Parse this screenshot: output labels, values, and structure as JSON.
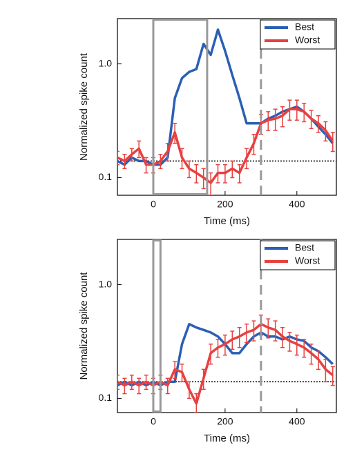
{
  "chart_data": [
    {
      "type": "line",
      "ylabel": "Normalized spike count",
      "xlabel": "Time (ms)",
      "x": [
        -100,
        -80,
        -60,
        -40,
        -20,
        0,
        20,
        40,
        60,
        80,
        100,
        120,
        140,
        160,
        180,
        200,
        220,
        240,
        260,
        280,
        300,
        320,
        340,
        360,
        380,
        400,
        420,
        440,
        460,
        480,
        500
      ],
      "series": [
        {
          "name": "Best",
          "color": "#2b5fb4",
          "values": [
            0.14,
            0.13,
            0.15,
            0.14,
            0.14,
            0.13,
            0.13,
            0.15,
            0.5,
            0.75,
            0.85,
            0.9,
            1.5,
            1.2,
            2.0,
            1.3,
            0.8,
            0.5,
            0.3,
            0.3,
            0.3,
            0.33,
            0.35,
            0.38,
            0.4,
            0.42,
            0.38,
            0.33,
            0.28,
            0.24,
            0.2
          ]
        },
        {
          "name": "Worst",
          "color": "#e8403f",
          "values": [
            0.15,
            0.14,
            0.16,
            0.18,
            0.13,
            0.13,
            0.14,
            0.17,
            0.25,
            0.15,
            0.12,
            0.11,
            0.1,
            0.09,
            0.11,
            0.11,
            0.12,
            0.11,
            0.15,
            0.2,
            0.3,
            0.32,
            0.33,
            0.35,
            0.4,
            0.4,
            0.38,
            0.33,
            0.3,
            0.26,
            0.21
          ],
          "errors": [
            0.02,
            0.02,
            0.02,
            0.03,
            0.02,
            0.02,
            0.02,
            0.03,
            0.05,
            0.03,
            0.02,
            0.02,
            0.02,
            0.02,
            0.02,
            0.02,
            0.02,
            0.02,
            0.03,
            0.04,
            0.06,
            0.06,
            0.07,
            0.07,
            0.08,
            0.08,
            0.07,
            0.06,
            0.05,
            0.05,
            0.04
          ]
        }
      ],
      "xlim": [
        -100,
        510
      ],
      "xticks": [
        0,
        200,
        400
      ],
      "ylim": [
        0.07,
        2.5
      ],
      "yticks": [
        0.1,
        {
          "value": 1,
          "label": "1.0"
        }
      ],
      "log_y": true,
      "hline": 0.14,
      "vline": 300,
      "window": [
        0,
        150
      ],
      "legend": "upper right"
    },
    {
      "type": "line",
      "ylabel": "Normalized spike count",
      "xlabel": "Time (ms)",
      "x": [
        -100,
        -80,
        -60,
        -40,
        -20,
        0,
        20,
        40,
        60,
        80,
        100,
        120,
        140,
        160,
        180,
        200,
        220,
        240,
        260,
        280,
        300,
        320,
        340,
        360,
        380,
        400,
        420,
        440,
        460,
        480,
        500
      ],
      "series": [
        {
          "name": "Best",
          "color": "#2b5fb4",
          "values": [
            0.13,
            0.14,
            0.13,
            0.14,
            0.13,
            0.14,
            0.13,
            0.14,
            0.14,
            0.3,
            0.45,
            0.42,
            0.4,
            0.38,
            0.35,
            0.3,
            0.25,
            0.25,
            0.3,
            0.35,
            0.38,
            0.35,
            0.35,
            0.33,
            0.35,
            0.33,
            0.32,
            0.28,
            0.26,
            0.23,
            0.2
          ]
        },
        {
          "name": "Worst",
          "color": "#e8403f",
          "values": [
            0.14,
            0.13,
            0.14,
            0.13,
            0.14,
            0.13,
            0.14,
            0.13,
            0.18,
            0.17,
            0.12,
            0.09,
            0.15,
            0.25,
            0.28,
            0.3,
            0.33,
            0.35,
            0.38,
            0.4,
            0.45,
            0.42,
            0.4,
            0.35,
            0.32,
            0.3,
            0.28,
            0.25,
            0.22,
            0.18,
            0.16
          ],
          "errors": [
            0.02,
            0.02,
            0.02,
            0.02,
            0.02,
            0.02,
            0.02,
            0.02,
            0.03,
            0.03,
            0.02,
            0.02,
            0.03,
            0.05,
            0.05,
            0.06,
            0.06,
            0.07,
            0.07,
            0.08,
            0.09,
            0.08,
            0.08,
            0.07,
            0.06,
            0.06,
            0.05,
            0.05,
            0.04,
            0.04,
            0.03
          ]
        }
      ],
      "xlim": [
        -100,
        510
      ],
      "xticks": [
        0,
        200,
        400
      ],
      "ylim": [
        0.075,
        2.5
      ],
      "yticks": [
        0.1,
        {
          "value": 1,
          "label": "1.0"
        }
      ],
      "log_y": true,
      "hline": 0.14,
      "vline": 300,
      "window": [
        0,
        20
      ],
      "legend": "upper right"
    }
  ]
}
